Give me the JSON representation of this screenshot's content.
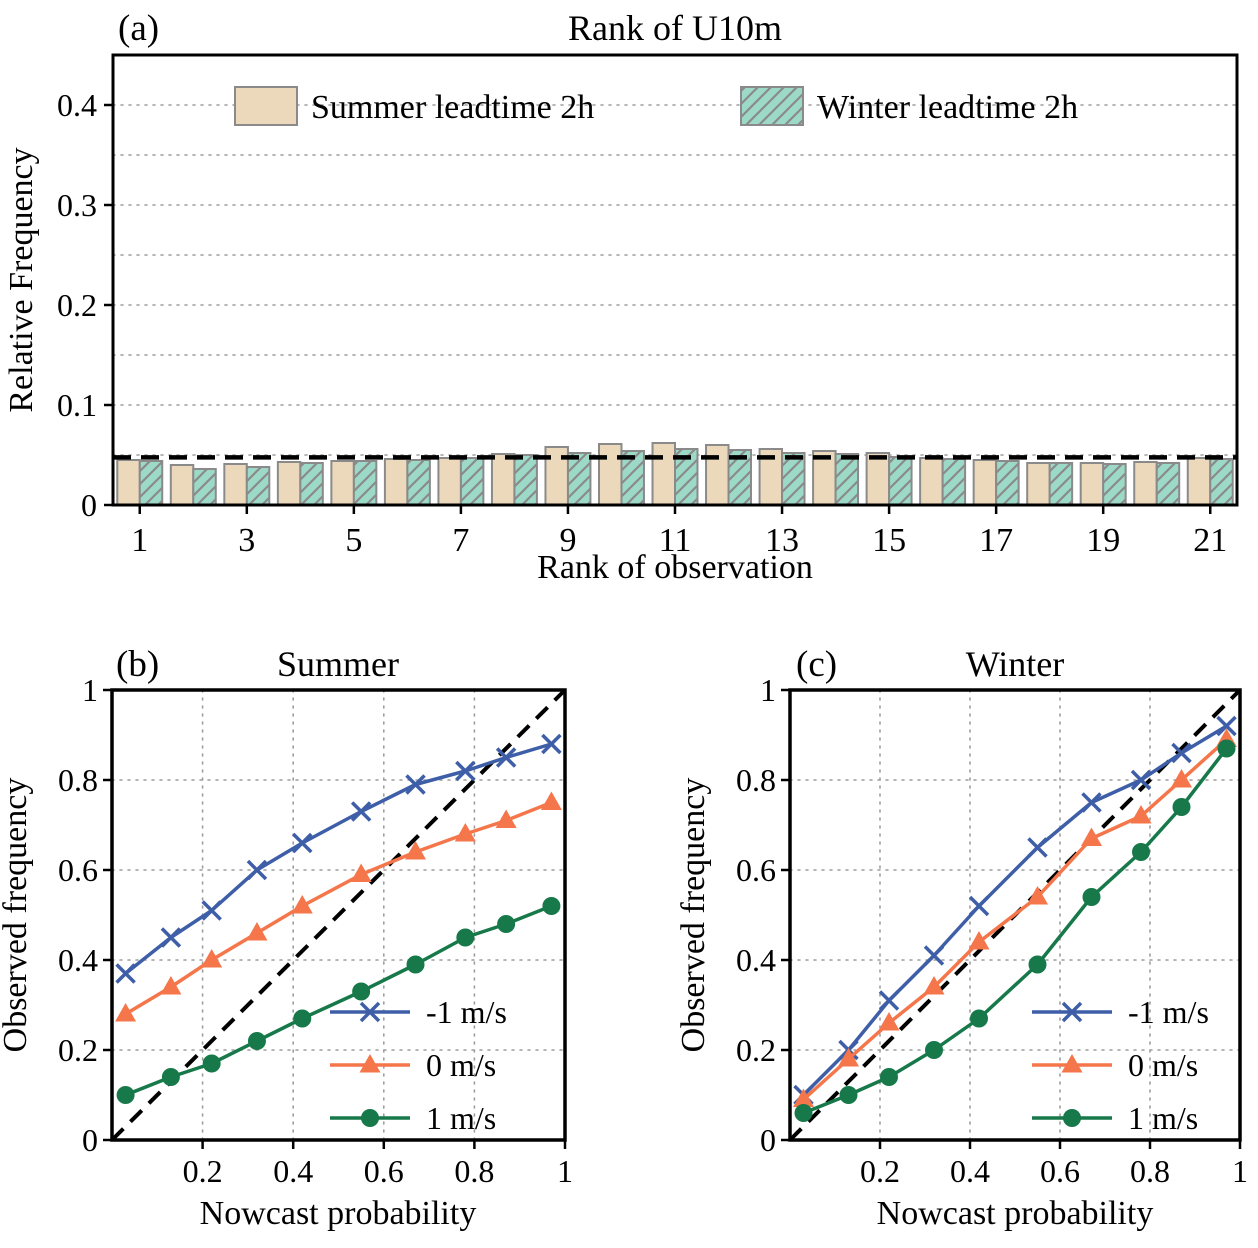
{
  "chart_data": [
    {
      "id": "a",
      "type": "bar",
      "panel_label": "(a)",
      "title": "Rank of U10m",
      "xlabel": "Rank of observation",
      "ylabel": "Relative Frequency",
      "ylim": [
        0,
        0.45
      ],
      "yticks": [
        0,
        0.1,
        0.2,
        0.3,
        0.4
      ],
      "grid_step": 0.05,
      "categories": [
        1,
        2,
        3,
        4,
        5,
        6,
        7,
        8,
        9,
        10,
        11,
        12,
        13,
        14,
        15,
        16,
        17,
        18,
        19,
        20,
        21
      ],
      "xtick_labels": [
        1,
        3,
        5,
        7,
        9,
        11,
        13,
        15,
        17,
        19,
        21
      ],
      "uniform_line": 0.0476,
      "legend_position": "upper center",
      "series": [
        {
          "name": "Summer leadtime 2h",
          "color": "#ecd9bc",
          "edge_color": "#8a8a8a",
          "hatch": false,
          "values": [
            0.045,
            0.04,
            0.041,
            0.043,
            0.044,
            0.046,
            0.047,
            0.051,
            0.058,
            0.061,
            0.062,
            0.06,
            0.056,
            0.054,
            0.052,
            0.047,
            0.045,
            0.042,
            0.042,
            0.043,
            0.047
          ]
        },
        {
          "name": "Winter leadtime 2h",
          "color": "#9cd9c6",
          "edge_color": "#8a8a8a",
          "hatch": true,
          "values": [
            0.044,
            0.036,
            0.038,
            0.042,
            0.044,
            0.045,
            0.047,
            0.05,
            0.052,
            0.054,
            0.056,
            0.055,
            0.052,
            0.051,
            0.048,
            0.046,
            0.044,
            0.042,
            0.041,
            0.042,
            0.046
          ]
        }
      ]
    },
    {
      "id": "b",
      "type": "line",
      "panel_label": "(b)",
      "title": "Summer",
      "xlabel": "Nowcast probability",
      "ylabel": "Observed frequency",
      "xlim": [
        0,
        1
      ],
      "ylim": [
        0,
        1
      ],
      "xticks": [
        0.2,
        0.4,
        0.6,
        0.8,
        1
      ],
      "yticks": [
        0,
        0.2,
        0.4,
        0.6,
        0.8,
        1
      ],
      "diagonal": true,
      "legend_position": "lower right",
      "x": [
        0.03,
        0.13,
        0.22,
        0.32,
        0.42,
        0.55,
        0.67,
        0.78,
        0.87,
        0.97
      ],
      "series": [
        {
          "name": "-1 m/s",
          "color": "#3e5fa8",
          "marker": "x",
          "y": [
            0.37,
            0.45,
            0.51,
            0.6,
            0.66,
            0.73,
            0.79,
            0.82,
            0.85,
            0.88
          ]
        },
        {
          "name": "0 m/s",
          "color": "#f4764a",
          "marker": "triangle",
          "y": [
            0.28,
            0.34,
            0.4,
            0.46,
            0.52,
            0.59,
            0.64,
            0.68,
            0.71,
            0.75
          ]
        },
        {
          "name": "1 m/s",
          "color": "#17794a",
          "marker": "circle",
          "y": [
            0.1,
            0.14,
            0.17,
            0.22,
            0.27,
            0.33,
            0.39,
            0.45,
            0.48,
            0.52
          ]
        }
      ]
    },
    {
      "id": "c",
      "type": "line",
      "panel_label": "(c)",
      "title": "Winter",
      "xlabel": "Nowcast probability",
      "ylabel": "Observed frequency",
      "xlim": [
        0,
        1
      ],
      "ylim": [
        0,
        1
      ],
      "xticks": [
        0.2,
        0.4,
        0.6,
        0.8,
        1
      ],
      "yticks": [
        0,
        0.2,
        0.4,
        0.6,
        0.8,
        1
      ],
      "diagonal": true,
      "legend_position": "lower right",
      "x": [
        0.03,
        0.13,
        0.22,
        0.32,
        0.42,
        0.55,
        0.67,
        0.78,
        0.87,
        0.97
      ],
      "series": [
        {
          "name": "-1 m/s",
          "color": "#3e5fa8",
          "marker": "x",
          "y": [
            0.1,
            0.2,
            0.31,
            0.41,
            0.52,
            0.65,
            0.75,
            0.8,
            0.86,
            0.92
          ]
        },
        {
          "name": "0 m/s",
          "color": "#f4764a",
          "marker": "triangle",
          "y": [
            0.09,
            0.18,
            0.26,
            0.34,
            0.44,
            0.54,
            0.67,
            0.72,
            0.8,
            0.89
          ]
        },
        {
          "name": "1 m/s",
          "color": "#17794a",
          "marker": "circle",
          "y": [
            0.06,
            0.1,
            0.14,
            0.2,
            0.27,
            0.39,
            0.54,
            0.64,
            0.74,
            0.87
          ]
        }
      ]
    }
  ],
  "style": {
    "grid_color": "#9e9e9e",
    "reference_color": "#000000",
    "bar_edge_color": "#8a8a8a"
  }
}
